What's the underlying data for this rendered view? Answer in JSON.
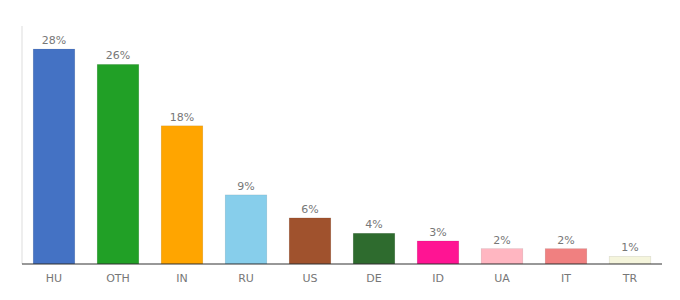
{
  "chart_data": {
    "type": "bar",
    "categories": [
      "HU",
      "OTH",
      "IN",
      "RU",
      "US",
      "DE",
      "ID",
      "UA",
      "IT",
      "TR"
    ],
    "values": [
      28,
      26,
      18,
      9,
      6,
      4,
      3,
      2,
      2,
      1
    ],
    "value_labels": [
      "28%",
      "26%",
      "18%",
      "9%",
      "6%",
      "4%",
      "3%",
      "2%",
      "2%",
      "1%"
    ],
    "colors": [
      "#4472C4",
      "#21A026",
      "#FFA500",
      "#87CEEB",
      "#A0522D",
      "#2E6B2E",
      "#FF1493",
      "#FFB6C1",
      "#F08080",
      "#F5F5DC"
    ],
    "ylim": [
      0,
      31
    ],
    "grid": false,
    "data_labels": true,
    "tick_labels": "x"
  }
}
